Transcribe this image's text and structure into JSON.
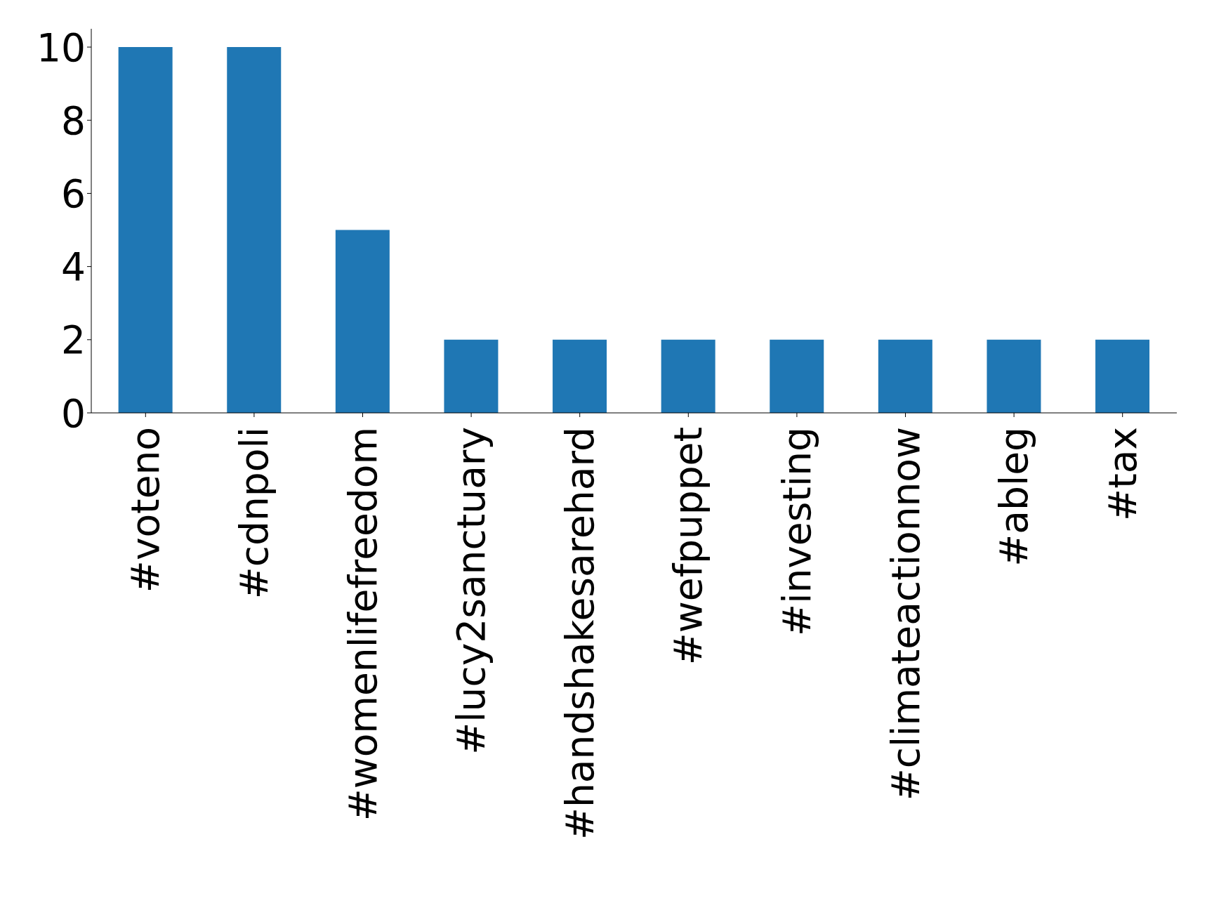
{
  "chart_data": {
    "type": "bar",
    "categories": [
      "#voteno",
      "#cdnpoli",
      "#womenlifefreedom",
      "#lucy2sanctuary",
      "#handshakesarehard",
      "#wefpuppet",
      "#investing",
      "#climateactionnow",
      "#ableg",
      "#tax"
    ],
    "values": [
      10,
      10,
      5,
      2,
      2,
      2,
      2,
      2,
      2,
      2
    ],
    "color": "#1f77b4",
    "ylim": [
      0,
      10.5
    ],
    "yticks": [
      0,
      2,
      4,
      6,
      8,
      10
    ],
    "grid": false
  }
}
